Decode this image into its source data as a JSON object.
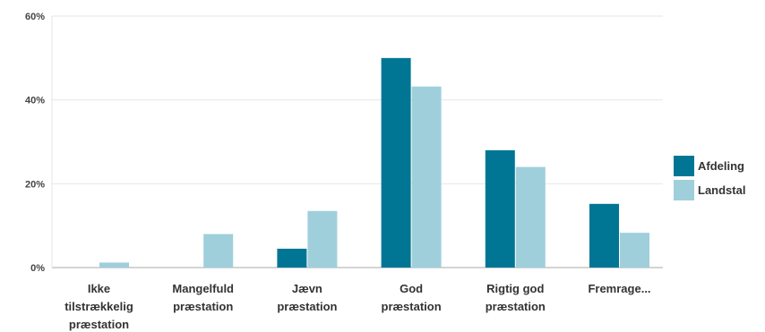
{
  "chart_data": {
    "type": "bar",
    "categories": [
      [
        "Ikke",
        "tilstrækkelig",
        "præstation"
      ],
      [
        "Mangelfuld",
        "præstation"
      ],
      [
        "Jævn",
        "præstation"
      ],
      [
        "God",
        "præstation"
      ],
      [
        "Rigtig god",
        "præstation"
      ],
      [
        "Fremrage..."
      ]
    ],
    "series": [
      {
        "name": "Afdeling",
        "color": "#007694",
        "values": [
          0,
          0,
          4.5,
          50,
          28,
          15.2
        ]
      },
      {
        "name": "Landstal",
        "color": "#9fcfdb",
        "values": [
          1.2,
          8,
          13.5,
          43.2,
          24,
          8.3
        ]
      }
    ],
    "ylim": [
      0,
      60
    ],
    "yticks": [
      0,
      20,
      40,
      60
    ],
    "ytick_labels": [
      "0%",
      "20%",
      "40%",
      "60%"
    ],
    "grid": true,
    "legend_position": "right"
  }
}
